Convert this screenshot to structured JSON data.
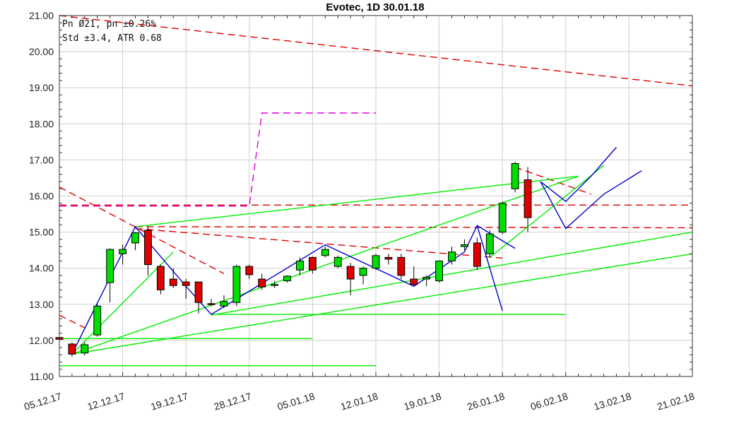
{
  "chart_data": {
    "type": "candlestick",
    "title": "Evotec, 1D 30.01.18",
    "stats_line1": "Pn  Ø21, pn ±0.26%",
    "stats_line2": "Std ±3.4, ATR 0.68",
    "xlabel": "",
    "ylabel": "",
    "ylim": [
      11.0,
      21.0
    ],
    "y_ticks": [
      "11.00",
      "12.00",
      "13.00",
      "14.00",
      "15.00",
      "16.00",
      "17.00",
      "18.00",
      "19.00",
      "20.00",
      "21.00"
    ],
    "x_ticks": [
      "05.12.17",
      "12.12.17",
      "19.12.17",
      "28.12.17",
      "05.01.18",
      "12.01.18",
      "19.01.18",
      "26.01.18",
      "06.02.18",
      "13.02.18",
      "21.02.18"
    ],
    "grid": true,
    "colors": {
      "up": "#00dd00",
      "down": "#dd0000",
      "zigzag": "#0000cc",
      "support": "#00ee00",
      "resistance": "#dd0000",
      "magenta": "#dd00dd"
    },
    "candles": [
      {
        "o": 12.08,
        "h": 12.1,
        "l": 12.0,
        "c": 12.03
      },
      {
        "o": 11.9,
        "h": 11.95,
        "l": 11.55,
        "c": 11.62
      },
      {
        "o": 11.65,
        "h": 11.95,
        "l": 11.58,
        "c": 11.88
      },
      {
        "o": 12.15,
        "h": 13.0,
        "l": 12.1,
        "c": 12.95
      },
      {
        "o": 13.6,
        "h": 14.55,
        "l": 13.05,
        "c": 14.52
      },
      {
        "o": 14.4,
        "h": 14.65,
        "l": 14.1,
        "c": 14.52
      },
      {
        "o": 14.7,
        "h": 15.0,
        "l": 14.5,
        "c": 14.98
      },
      {
        "o": 15.05,
        "h": 15.15,
        "l": 13.8,
        "c": 14.1
      },
      {
        "o": 14.05,
        "h": 14.1,
        "l": 13.28,
        "c": 13.4
      },
      {
        "o": 13.7,
        "h": 14.0,
        "l": 13.45,
        "c": 13.52
      },
      {
        "o": 13.62,
        "h": 13.7,
        "l": 13.15,
        "c": 13.52
      },
      {
        "o": 13.62,
        "h": 13.62,
        "l": 12.75,
        "c": 13.05
      },
      {
        "o": 13.02,
        "h": 13.15,
        "l": 12.95,
        "c": 13.0
      },
      {
        "o": 12.95,
        "h": 13.25,
        "l": 12.9,
        "c": 13.08
      },
      {
        "o": 13.05,
        "h": 14.1,
        "l": 12.95,
        "c": 14.05
      },
      {
        "o": 14.05,
        "h": 14.1,
        "l": 13.7,
        "c": 13.82
      },
      {
        "o": 13.7,
        "h": 13.85,
        "l": 13.4,
        "c": 13.48
      },
      {
        "o": 13.55,
        "h": 13.65,
        "l": 13.45,
        "c": 13.55
      },
      {
        "o": 13.65,
        "h": 13.8,
        "l": 13.6,
        "c": 13.78
      },
      {
        "o": 13.95,
        "h": 14.3,
        "l": 13.8,
        "c": 14.2
      },
      {
        "o": 14.3,
        "h": 14.32,
        "l": 13.85,
        "c": 13.95
      },
      {
        "o": 14.35,
        "h": 14.6,
        "l": 14.3,
        "c": 14.52
      },
      {
        "o": 14.05,
        "h": 14.35,
        "l": 14.0,
        "c": 14.3
      },
      {
        "o": 14.05,
        "h": 14.15,
        "l": 13.25,
        "c": 13.7
      },
      {
        "o": 13.8,
        "h": 14.05,
        "l": 13.55,
        "c": 14.0
      },
      {
        "o": 14.0,
        "h": 14.4,
        "l": 13.95,
        "c": 14.35
      },
      {
        "o": 14.3,
        "h": 14.4,
        "l": 14.1,
        "c": 14.25
      },
      {
        "o": 14.3,
        "h": 14.4,
        "l": 13.7,
        "c": 13.8
      },
      {
        "o": 13.7,
        "h": 14.05,
        "l": 13.5,
        "c": 13.55
      },
      {
        "o": 13.7,
        "h": 13.8,
        "l": 13.5,
        "c": 13.75
      },
      {
        "o": 13.65,
        "h": 14.2,
        "l": 13.6,
        "c": 14.2
      },
      {
        "o": 14.2,
        "h": 14.6,
        "l": 14.1,
        "c": 14.45
      },
      {
        "o": 14.6,
        "h": 14.8,
        "l": 14.5,
        "c": 14.65
      },
      {
        "o": 14.7,
        "h": 14.85,
        "l": 13.95,
        "c": 14.05
      },
      {
        "o": 14.4,
        "h": 15.05,
        "l": 14.3,
        "c": 14.95
      },
      {
        "o": 15.0,
        "h": 15.85,
        "l": 14.95,
        "c": 15.8
      },
      {
        "o": 16.2,
        "h": 16.95,
        "l": 16.1,
        "c": 16.9
      },
      {
        "o": 16.45,
        "h": 16.8,
        "l": 15.0,
        "c": 15.4
      }
    ],
    "zigzag": [
      [
        1,
        11.62
      ],
      [
        6,
        15.15
      ],
      [
        10,
        13.5
      ],
      [
        12,
        12.72
      ],
      [
        21,
        14.65
      ],
      [
        28,
        13.5
      ],
      [
        32,
        14.45
      ],
      [
        33,
        15.18
      ],
      [
        36,
        14.55
      ],
      [
        36,
        14.55
      ],
      [
        38,
        16.4
      ],
      [
        40,
        15.85
      ],
      [
        42,
        16.55
      ],
      [
        44,
        17.35
      ]
    ],
    "zigzag_proj1": [
      [
        33,
        15.18
      ],
      [
        35,
        12.82
      ]
    ],
    "zigzag_proj2": [
      [
        38,
        16.4
      ],
      [
        39,
        15.75
      ],
      [
        40,
        15.1
      ],
      [
        43,
        16.05
      ],
      [
        46,
        16.7
      ]
    ],
    "support_lines": [
      [
        [
          1,
          11.62
        ],
        [
          41,
          16.55
        ]
      ],
      [
        [
          6,
          15.15
        ],
        [
          41,
          16.55
        ]
      ],
      [
        [
          12,
          12.7
        ],
        [
          50,
          15.0
        ]
      ],
      [
        [
          1,
          11.62
        ],
        [
          50,
          14.4
        ]
      ],
      [
        [
          12,
          12.72
        ],
        [
          40,
          12.72
        ]
      ],
      [
        [
          0,
          12.05
        ],
        [
          20,
          12.05
        ]
      ],
      [
        [
          0,
          11.3
        ],
        [
          25,
          11.3
        ]
      ],
      [
        [
          1,
          11.62
        ],
        [
          9,
          14.45
        ]
      ],
      [
        [
          34,
          14.3
        ],
        [
          43,
          16.85
        ]
      ]
    ],
    "resistance_lines": [
      [
        [
          0,
          21.0
        ],
        [
          50,
          19.05
        ]
      ],
      [
        [
          0,
          16.25
        ],
        [
          13,
          13.85
        ]
      ],
      [
        [
          0,
          15.75
        ],
        [
          50,
          15.75
        ]
      ],
      [
        [
          6,
          15.15
        ],
        [
          50,
          15.12
        ]
      ],
      [
        [
          0,
          12.7
        ],
        [
          2,
          12.35
        ]
      ],
      [
        [
          6,
          15.1
        ],
        [
          35,
          14.28
        ]
      ],
      [
        [
          36,
          16.8
        ],
        [
          42,
          16.05
        ]
      ]
    ],
    "magenta_line": [
      [
        0,
        15.72
      ],
      [
        15,
        15.72
      ],
      [
        16,
        18.3
      ],
      [
        25,
        18.3
      ]
    ]
  }
}
